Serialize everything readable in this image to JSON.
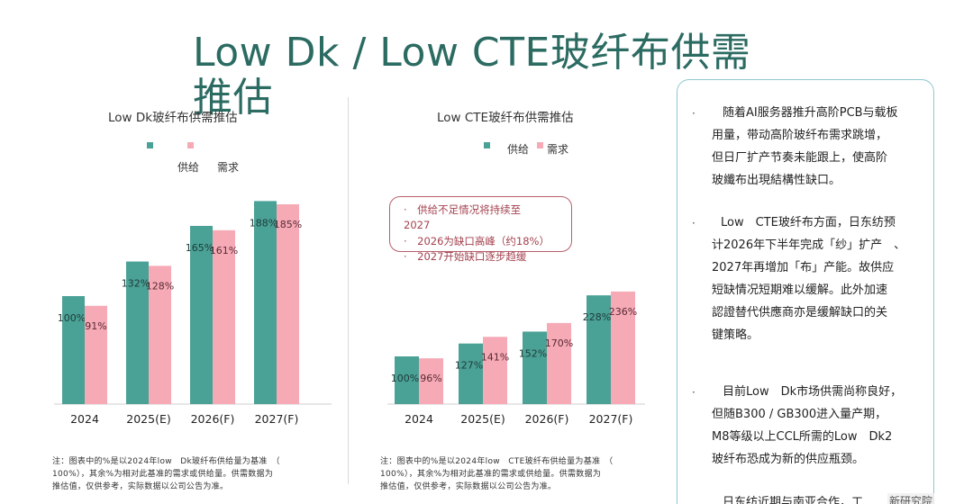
{
  "title": "Low Dk / Low CTE玻纤布供需推估",
  "legend": {
    "supply": "供给",
    "demand": "需求"
  },
  "colors": {
    "supply": "#4aa196",
    "demand": "#f5aab6",
    "title": "#2b6b62",
    "annotation": "#a3424f",
    "panel_border": "#8cc8cf"
  },
  "chart_data": [
    {
      "type": "bar",
      "title": "Low Dk玻纤布供需推估",
      "categories": [
        "2024",
        "2025(E)",
        "2026(F)",
        "2027(F)"
      ],
      "series": [
        {
          "name": "供给",
          "values": [
            100,
            132,
            165,
            188
          ],
          "labels": [
            "100%",
            "132%",
            "165%",
            "188%"
          ]
        },
        {
          "name": "需求",
          "values": [
            91,
            128,
            161,
            185
          ],
          "labels": [
            "91%",
            "128%",
            "161%",
            "185%"
          ]
        }
      ],
      "ylim": [
        0,
        200
      ]
    },
    {
      "type": "bar",
      "title": "Low CTE玻纤布供需推估",
      "categories": [
        "2024",
        "2025(E)",
        "2026(F)",
        "2027(F)"
      ],
      "series": [
        {
          "name": "供给",
          "values": [
            100,
            127,
            152,
            228
          ],
          "labels": [
            "100%",
            "127%",
            "152%",
            "228%"
          ]
        },
        {
          "name": "需求",
          "values": [
            96,
            141,
            170,
            236
          ],
          "labels": [
            "96%",
            "141%",
            "170%",
            "236%"
          ]
        }
      ],
      "ylim": [
        0,
        250
      ]
    }
  ],
  "notes": [
    [
      "注：图表中的%是以2024年low　Dk玻纤布供给量为基准　（",
      "100%），其余%为相对此基准的需求或供给量。供需数据为",
      "推估值，仅供参考，实际数据以公司公告为准。"
    ],
    [
      "注：图表中的%是以2024年low　CTE玻纤布供给量为基准　（",
      "100%），其余%为相对此基准的需求或供给量。供需数据为",
      "推估值，仅供参考，实际数据以公司公告为准。"
    ]
  ],
  "annotation": {
    "lines": [
      "·　供给不足情况将持续至",
      "2027",
      "·　2026为缺口高峰（约18%）",
      "·　2027开始缺口逐步趋缓"
    ]
  },
  "bullets": [
    {
      "dot": "·",
      "lines": [
        "随着AI服务器推升高阶PCB与载板",
        "用量，带动高阶玻纤布需求跳增，",
        "但日厂扩产节奏未能跟上，使高阶",
        "玻纖布出現結構性缺口。"
      ]
    },
    {
      "dot": "·",
      "lines": [
        "Low　CTE玻纤布方面，日东纺预",
        "计2026年下半年完成「纱」扩产　、",
        "2027年再增加「布」产能。故供应",
        "短缺情况短期难以缓解。此外加速",
        "認證替代供應商亦是缓解缺口的关",
        "键策略。"
      ]
    },
    {
      "dot": "·",
      "lines": [
        "目前Low　Dk市场供需尚称良好，",
        "但随B300 / GB300进入量产期，",
        "M8等级以上CCL所需的Low　Dk2",
        "玻纤布恐成为新的供应瓶颈。"
      ]
    }
  ],
  "footer_text": "日东纺近期与南亚合作，工",
  "watermark": "新研究院"
}
